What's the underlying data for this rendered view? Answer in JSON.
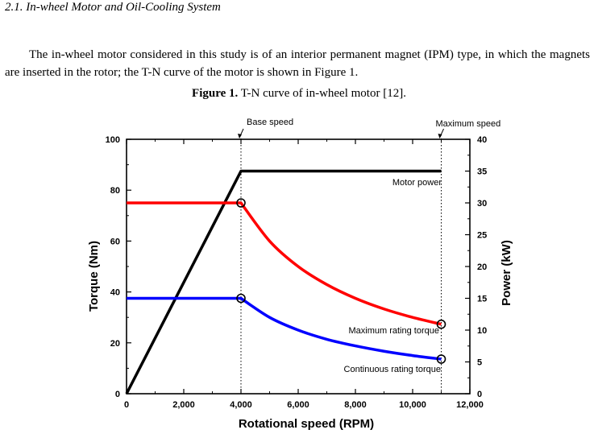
{
  "section": {
    "heading": "2.1. In-wheel Motor and Oil-Cooling System"
  },
  "paragraph": "The in-wheel motor considered in this study is of an interior permanent magnet (IPM) type, in which the magnets are inserted in the rotor; the T-N curve of the motor is shown in Figure 1.",
  "caption": {
    "label": "Figure 1.",
    "text": "T-N curve of in-wheel motor [12]."
  },
  "chart_data": {
    "type": "line",
    "xlabel": "Rotational speed (RPM)",
    "ylabel": "Torque (Nm)",
    "y2label": "Power (kW)",
    "xlim": [
      0,
      12000
    ],
    "ylim": [
      0,
      100
    ],
    "y2lim": [
      0,
      40
    ],
    "x_ticks": [
      "0",
      "2,000",
      "4,000",
      "6,000",
      "8,000",
      "10,000",
      "12,000"
    ],
    "y_ticks": [
      "0",
      "20",
      "40",
      "60",
      "80",
      "100"
    ],
    "y2_ticks": [
      "0",
      "5",
      "10",
      "15",
      "20",
      "25",
      "30",
      "35",
      "40"
    ],
    "grid": false,
    "annotations": {
      "base_speed": "Base speed",
      "max_speed": "Maximum speed",
      "motor_power": "Motor power",
      "max_torque": "Maximum rating torque",
      "cont_torque": "Continuous rating torque"
    },
    "reference_lines_x": [
      4000,
      11000
    ],
    "series": [
      {
        "name": "Motor power",
        "axis": "right",
        "color": "#000000",
        "x": [
          0,
          4000,
          11000
        ],
        "y": [
          0,
          35,
          35
        ]
      },
      {
        "name": "Maximum rating torque",
        "axis": "left",
        "color": "#ff0000",
        "x": [
          0,
          4000,
          5000,
          6000,
          7000,
          8000,
          9000,
          10000,
          11000
        ],
        "y": [
          75,
          75,
          60,
          50,
          42.9,
          37.5,
          33.3,
          30,
          27.3
        ]
      },
      {
        "name": "Continuous rating torque",
        "axis": "left",
        "color": "#0000ff",
        "x": [
          0,
          4000,
          5000,
          6000,
          7000,
          8000,
          9000,
          10000,
          11000
        ],
        "y": [
          37.5,
          37.5,
          30,
          25,
          21.4,
          18.8,
          16.7,
          15,
          13.6
        ]
      }
    ],
    "markers": [
      {
        "x": 4000,
        "y": 75
      },
      {
        "x": 4000,
        "y": 37.5
      },
      {
        "x": 11000,
        "y": 27.3
      },
      {
        "x": 11000,
        "y": 13.6
      }
    ]
  }
}
